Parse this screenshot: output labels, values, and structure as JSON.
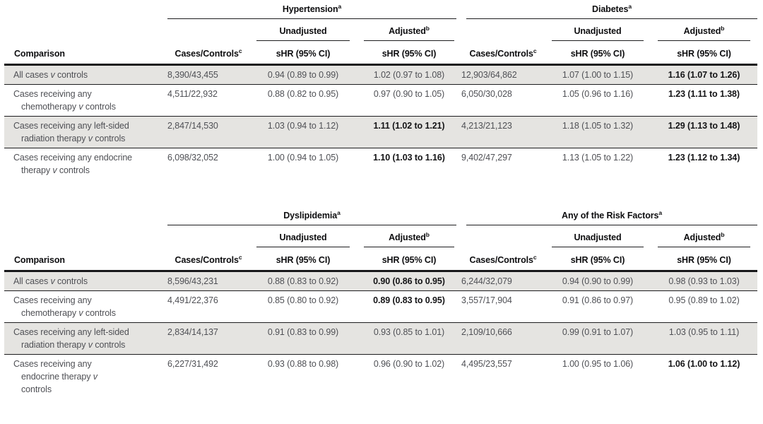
{
  "colors": {
    "shaded_row": "#e5e4e1",
    "data_text": "#4f5055",
    "header_text": "#0d0d0f",
    "bold_text": "#141416",
    "rule": "#1d1d1f"
  },
  "header_labels": {
    "comparison": "Comparison",
    "cases_controls": {
      "label": "Cases/Controls",
      "sup": "c"
    },
    "unadjusted": "Unadjusted",
    "adjusted": {
      "label": "Adjusted",
      "sup": "b"
    },
    "shr": "sHR (95% CI)"
  },
  "tables": [
    {
      "groups": [
        {
          "label": "Hypertension",
          "sup": "a"
        },
        {
          "label": "Diabetes",
          "sup": "a"
        }
      ],
      "rows": [
        {
          "shaded": true,
          "label_lines": [
            "All cases v controls"
          ],
          "cells": [
            "8,390/43,455",
            "0.94 (0.89 to 0.99)",
            "1.02 (0.97 to 1.08)",
            "12,903/64,862",
            "1.07 (1.00 to 1.15)",
            "1.16 (1.07 to 1.26)"
          ],
          "bold": [
            false,
            false,
            false,
            false,
            false,
            true
          ]
        },
        {
          "shaded": false,
          "label_lines": [
            "Cases receiving any",
            "chemotherapy v controls"
          ],
          "cells": [
            "4,511/22,932",
            "0.88 (0.82 to 0.95)",
            "0.97 (0.90 to 1.05)",
            "6,050/30,028",
            "1.05 (0.96 to 1.16)",
            "1.23 (1.11 to 1.38)"
          ],
          "bold": [
            false,
            false,
            false,
            false,
            false,
            true
          ]
        },
        {
          "shaded": true,
          "label_lines": [
            "Cases receiving any left-sided",
            "radiation therapy v controls"
          ],
          "cells": [
            "2,847/14,530",
            "1.03 (0.94 to 1.12)",
            "1.11 (1.02 to 1.21)",
            "4,213/21,123",
            "1.18 (1.05 to 1.32)",
            "1.29 (1.13 to 1.48)"
          ],
          "bold": [
            false,
            false,
            true,
            false,
            false,
            true
          ]
        },
        {
          "shaded": false,
          "label_lines": [
            "Cases receiving any endocrine",
            "therapy v controls"
          ],
          "cells": [
            "6,098/32,052",
            "1.00 (0.94 to 1.05)",
            "1.10 (1.03 to 1.16)",
            "9,402/47,297",
            "1.13 (1.05 to 1.22)",
            "1.23 (1.12 to 1.34)"
          ],
          "bold": [
            false,
            false,
            true,
            false,
            false,
            true
          ]
        }
      ]
    },
    {
      "groups": [
        {
          "label": "Dyslipidemia",
          "sup": "a"
        },
        {
          "label": "Any of the Risk Factors",
          "sup": "a"
        }
      ],
      "rows": [
        {
          "shaded": true,
          "label_lines": [
            "All cases v controls"
          ],
          "cells": [
            "8,596/43,231",
            "0.88 (0.83 to 0.92)",
            "0.90 (0.86 to 0.95)",
            "6,244/32,079",
            "0.94 (0.90 to 0.99)",
            "0.98 (0.93 to 1.03)"
          ],
          "bold": [
            false,
            false,
            true,
            false,
            false,
            false
          ]
        },
        {
          "shaded": false,
          "label_lines": [
            "Cases receiving any",
            "chemotherapy v controls"
          ],
          "cells": [
            "4,491/22,376",
            "0.85 (0.80 to 0.92)",
            "0.89 (0.83 to 0.95)",
            "3,557/17,904",
            "0.91 (0.86 to 0.97)",
            "0.95 (0.89 to 1.02)"
          ],
          "bold": [
            false,
            false,
            true,
            false,
            false,
            false
          ]
        },
        {
          "shaded": true,
          "label_lines": [
            "Cases receiving any left-sided",
            "radiation therapy v controls"
          ],
          "cells": [
            "2,834/14,137",
            "0.91 (0.83 to 0.99)",
            "0.93 (0.85 to 1.01)",
            "2,109/10,666",
            "0.99 (0.91 to 1.07)",
            "1.03 (0.95 to 1.11)"
          ],
          "bold": [
            false,
            false,
            false,
            false,
            false,
            false
          ]
        },
        {
          "shaded": false,
          "label_lines": [
            "Cases receiving any",
            "endocrine therapy v",
            "controls"
          ],
          "cells": [
            "6,227/31,492",
            "0.93 (0.88 to 0.98)",
            "0.96 (0.90 to 1.02)",
            "4,495/23,557",
            "1.00 (0.95 to 1.06)",
            "1.06 (1.00 to 1.12)"
          ],
          "bold": [
            false,
            false,
            false,
            false,
            false,
            true
          ]
        }
      ]
    }
  ]
}
